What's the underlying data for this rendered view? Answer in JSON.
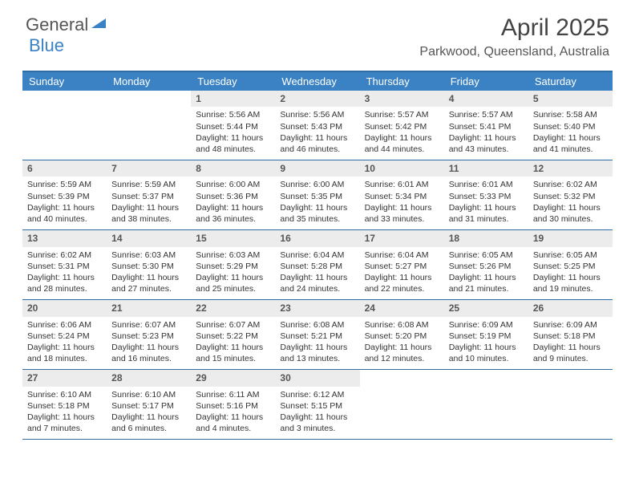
{
  "brand": {
    "word1": "General",
    "word2": "Blue",
    "text_color": "#555555",
    "accent_color": "#3b82c4"
  },
  "title": "April 2025",
  "location": "Parkwood, Queensland, Australia",
  "colors": {
    "header_bg": "#3b82c4",
    "header_text": "#ffffff",
    "row_border": "#2e6da4",
    "daynum_bg": "#ececec",
    "body_text": "#333333"
  },
  "day_headers": [
    "Sunday",
    "Monday",
    "Tuesday",
    "Wednesday",
    "Thursday",
    "Friday",
    "Saturday"
  ],
  "weeks": [
    [
      {
        "n": "",
        "sr": "",
        "ss": "",
        "dl": ""
      },
      {
        "n": "",
        "sr": "",
        "ss": "",
        "dl": ""
      },
      {
        "n": "1",
        "sr": "Sunrise: 5:56 AM",
        "ss": "Sunset: 5:44 PM",
        "dl": "Daylight: 11 hours and 48 minutes."
      },
      {
        "n": "2",
        "sr": "Sunrise: 5:56 AM",
        "ss": "Sunset: 5:43 PM",
        "dl": "Daylight: 11 hours and 46 minutes."
      },
      {
        "n": "3",
        "sr": "Sunrise: 5:57 AM",
        "ss": "Sunset: 5:42 PM",
        "dl": "Daylight: 11 hours and 44 minutes."
      },
      {
        "n": "4",
        "sr": "Sunrise: 5:57 AM",
        "ss": "Sunset: 5:41 PM",
        "dl": "Daylight: 11 hours and 43 minutes."
      },
      {
        "n": "5",
        "sr": "Sunrise: 5:58 AM",
        "ss": "Sunset: 5:40 PM",
        "dl": "Daylight: 11 hours and 41 minutes."
      }
    ],
    [
      {
        "n": "6",
        "sr": "Sunrise: 5:59 AM",
        "ss": "Sunset: 5:39 PM",
        "dl": "Daylight: 11 hours and 40 minutes."
      },
      {
        "n": "7",
        "sr": "Sunrise: 5:59 AM",
        "ss": "Sunset: 5:37 PM",
        "dl": "Daylight: 11 hours and 38 minutes."
      },
      {
        "n": "8",
        "sr": "Sunrise: 6:00 AM",
        "ss": "Sunset: 5:36 PM",
        "dl": "Daylight: 11 hours and 36 minutes."
      },
      {
        "n": "9",
        "sr": "Sunrise: 6:00 AM",
        "ss": "Sunset: 5:35 PM",
        "dl": "Daylight: 11 hours and 35 minutes."
      },
      {
        "n": "10",
        "sr": "Sunrise: 6:01 AM",
        "ss": "Sunset: 5:34 PM",
        "dl": "Daylight: 11 hours and 33 minutes."
      },
      {
        "n": "11",
        "sr": "Sunrise: 6:01 AM",
        "ss": "Sunset: 5:33 PM",
        "dl": "Daylight: 11 hours and 31 minutes."
      },
      {
        "n": "12",
        "sr": "Sunrise: 6:02 AM",
        "ss": "Sunset: 5:32 PM",
        "dl": "Daylight: 11 hours and 30 minutes."
      }
    ],
    [
      {
        "n": "13",
        "sr": "Sunrise: 6:02 AM",
        "ss": "Sunset: 5:31 PM",
        "dl": "Daylight: 11 hours and 28 minutes."
      },
      {
        "n": "14",
        "sr": "Sunrise: 6:03 AM",
        "ss": "Sunset: 5:30 PM",
        "dl": "Daylight: 11 hours and 27 minutes."
      },
      {
        "n": "15",
        "sr": "Sunrise: 6:03 AM",
        "ss": "Sunset: 5:29 PM",
        "dl": "Daylight: 11 hours and 25 minutes."
      },
      {
        "n": "16",
        "sr": "Sunrise: 6:04 AM",
        "ss": "Sunset: 5:28 PM",
        "dl": "Daylight: 11 hours and 24 minutes."
      },
      {
        "n": "17",
        "sr": "Sunrise: 6:04 AM",
        "ss": "Sunset: 5:27 PM",
        "dl": "Daylight: 11 hours and 22 minutes."
      },
      {
        "n": "18",
        "sr": "Sunrise: 6:05 AM",
        "ss": "Sunset: 5:26 PM",
        "dl": "Daylight: 11 hours and 21 minutes."
      },
      {
        "n": "19",
        "sr": "Sunrise: 6:05 AM",
        "ss": "Sunset: 5:25 PM",
        "dl": "Daylight: 11 hours and 19 minutes."
      }
    ],
    [
      {
        "n": "20",
        "sr": "Sunrise: 6:06 AM",
        "ss": "Sunset: 5:24 PM",
        "dl": "Daylight: 11 hours and 18 minutes."
      },
      {
        "n": "21",
        "sr": "Sunrise: 6:07 AM",
        "ss": "Sunset: 5:23 PM",
        "dl": "Daylight: 11 hours and 16 minutes."
      },
      {
        "n": "22",
        "sr": "Sunrise: 6:07 AM",
        "ss": "Sunset: 5:22 PM",
        "dl": "Daylight: 11 hours and 15 minutes."
      },
      {
        "n": "23",
        "sr": "Sunrise: 6:08 AM",
        "ss": "Sunset: 5:21 PM",
        "dl": "Daylight: 11 hours and 13 minutes."
      },
      {
        "n": "24",
        "sr": "Sunrise: 6:08 AM",
        "ss": "Sunset: 5:20 PM",
        "dl": "Daylight: 11 hours and 12 minutes."
      },
      {
        "n": "25",
        "sr": "Sunrise: 6:09 AM",
        "ss": "Sunset: 5:19 PM",
        "dl": "Daylight: 11 hours and 10 minutes."
      },
      {
        "n": "26",
        "sr": "Sunrise: 6:09 AM",
        "ss": "Sunset: 5:18 PM",
        "dl": "Daylight: 11 hours and 9 minutes."
      }
    ],
    [
      {
        "n": "27",
        "sr": "Sunrise: 6:10 AM",
        "ss": "Sunset: 5:18 PM",
        "dl": "Daylight: 11 hours and 7 minutes."
      },
      {
        "n": "28",
        "sr": "Sunrise: 6:10 AM",
        "ss": "Sunset: 5:17 PM",
        "dl": "Daylight: 11 hours and 6 minutes."
      },
      {
        "n": "29",
        "sr": "Sunrise: 6:11 AM",
        "ss": "Sunset: 5:16 PM",
        "dl": "Daylight: 11 hours and 4 minutes."
      },
      {
        "n": "30",
        "sr": "Sunrise: 6:12 AM",
        "ss": "Sunset: 5:15 PM",
        "dl": "Daylight: 11 hours and 3 minutes."
      },
      {
        "n": "",
        "sr": "",
        "ss": "",
        "dl": ""
      },
      {
        "n": "",
        "sr": "",
        "ss": "",
        "dl": ""
      },
      {
        "n": "",
        "sr": "",
        "ss": "",
        "dl": ""
      }
    ]
  ]
}
